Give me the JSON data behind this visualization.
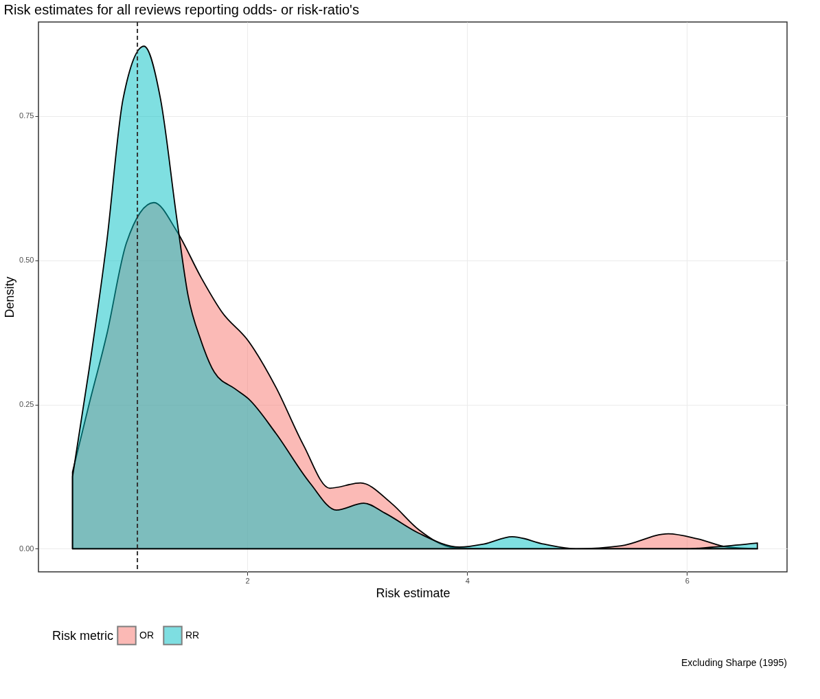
{
  "chart_data": {
    "type": "area",
    "title": "Risk estimates for all reviews reporting odds- or risk-ratio's",
    "xlabel": "Risk estimate",
    "ylabel": "Density",
    "legend_title": "Risk metric",
    "legend": "bottom",
    "grid": true,
    "xlim": [
      0.1,
      6.91
    ],
    "ylim": [
      -0.04,
      0.913
    ],
    "xticks": [
      2,
      4,
      6
    ],
    "yticks": [
      {
        "value": 0,
        "label": "0.00"
      },
      {
        "value": 0.25,
        "label": "0.25"
      },
      {
        "value": 0.5,
        "label": "0.50"
      },
      {
        "value": 0.75,
        "label": "0.75"
      }
    ],
    "ref_lines": [
      {
        "axis": "x",
        "value": 1,
        "line_style": "dashed",
        "color": "#333333"
      }
    ],
    "annotations": [
      "Excluding Sharpe (1995)"
    ],
    "series": [
      {
        "name": "OR",
        "color": "#f8766d",
        "x": [
          0.41,
          0.56,
          0.72,
          0.9,
          1.15,
          1.36,
          1.58,
          1.77,
          2.01,
          2.26,
          2.51,
          2.75,
          3.03,
          3.31,
          3.56,
          3.88,
          4.2,
          4.5,
          5.0,
          5.4,
          5.83,
          6.1,
          6.37,
          6.64
        ],
        "values": [
          0.133,
          0.25,
          0.37,
          0.53,
          0.6,
          0.55,
          0.47,
          0.41,
          0.36,
          0.28,
          0.18,
          0.105,
          0.114,
          0.079,
          0.033,
          0.002,
          0,
          0,
          0,
          0.005,
          0.026,
          0.017,
          0.003,
          0
        ]
      },
      {
        "name": "RR",
        "color": "#00bfc4",
        "x": [
          0.41,
          0.56,
          0.72,
          0.87,
          1.06,
          1.21,
          1.36,
          1.46,
          1.58,
          1.7,
          1.89,
          2.01,
          2.26,
          2.57,
          2.81,
          3.06,
          3.25,
          3.56,
          3.93,
          4.15,
          4.41,
          4.7,
          4.99,
          5.5,
          6.0,
          6.3,
          6.64
        ],
        "values": [
          0.125,
          0.31,
          0.53,
          0.78,
          0.871,
          0.78,
          0.57,
          0.44,
          0.36,
          0.306,
          0.277,
          0.26,
          0.2,
          0.114,
          0.067,
          0.079,
          0.062,
          0.027,
          0.003,
          0.008,
          0.021,
          0.008,
          0,
          0,
          0,
          0.004,
          0.01
        ]
      }
    ]
  }
}
